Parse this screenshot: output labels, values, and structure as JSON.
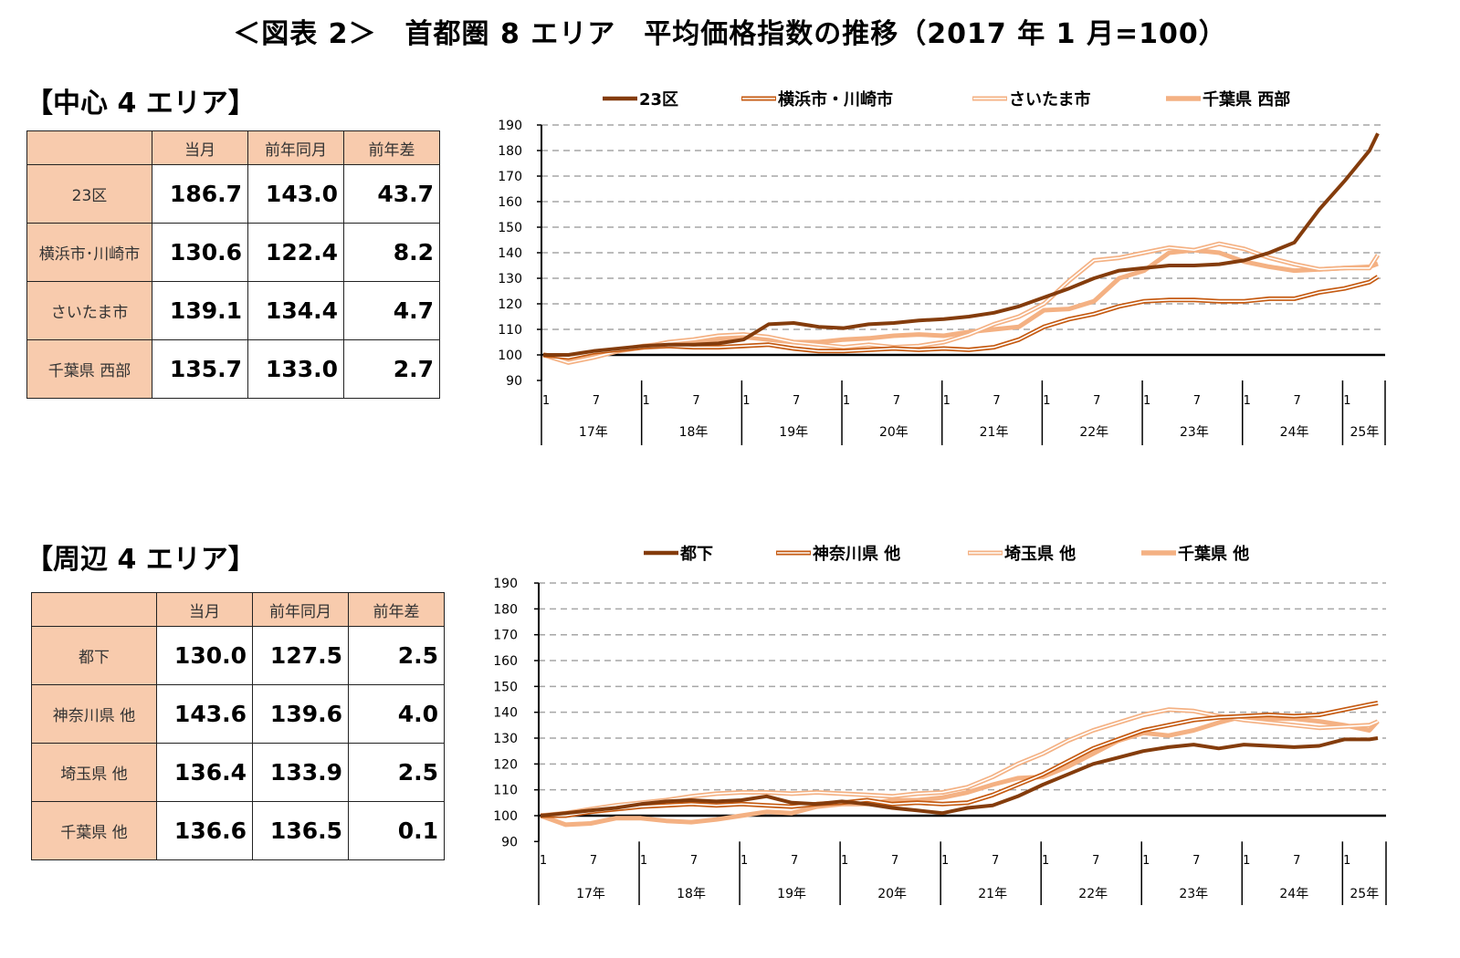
{
  "title": "＜図表 2＞　首都圏 8 エリア　平均価格指数の推移（2017 年 1 月=100）",
  "tables": [
    {
      "heading": "【中心 4 エリア】",
      "columns": [
        "",
        "当月",
        "前年同月",
        "前年差"
      ],
      "rows": [
        {
          "area": "23区",
          "current": "186.7",
          "prev_year": "143.0",
          "diff": "43.7"
        },
        {
          "area": "横浜市･川崎市",
          "current": "130.6",
          "prev_year": "122.4",
          "diff": "8.2"
        },
        {
          "area": "さいたま市",
          "current": "139.1",
          "prev_year": "134.4",
          "diff": "4.7"
        },
        {
          "area": "千葉県 西部",
          "current": "135.7",
          "prev_year": "133.0",
          "diff": "2.7"
        }
      ]
    },
    {
      "heading": "【周辺 4 エリア】",
      "columns": [
        "",
        "当月",
        "前年同月",
        "前年差"
      ],
      "rows": [
        {
          "area": "都下",
          "current": "130.0",
          "prev_year": "127.5",
          "diff": "2.5"
        },
        {
          "area": "神奈川県 他",
          "current": "143.6",
          "prev_year": "139.6",
          "diff": "4.0"
        },
        {
          "area": "埼玉県 他",
          "current": "136.4",
          "prev_year": "133.9",
          "diff": "2.5"
        },
        {
          "area": "千葉県 他",
          "current": "136.6",
          "prev_year": "136.5",
          "diff": "0.1"
        }
      ]
    }
  ],
  "chart_data": [
    {
      "type": "line",
      "title": "",
      "ylim": [
        90,
        190
      ],
      "y_ticks": [
        90,
        100,
        110,
        120,
        130,
        140,
        150,
        160,
        170,
        180,
        190
      ],
      "grid": "horizontal dashed",
      "legend_position": "top",
      "x_tick_labels": [
        "1",
        "7"
      ],
      "year_labels": [
        "17年",
        "18年",
        "19年",
        "20年",
        "21年",
        "22年",
        "23年",
        "24年",
        "25年"
      ],
      "x": [
        "2017-01",
        "2017-04",
        "2017-07",
        "2017-10",
        "2018-01",
        "2018-04",
        "2018-07",
        "2018-10",
        "2019-01",
        "2019-04",
        "2019-07",
        "2019-10",
        "2020-01",
        "2020-04",
        "2020-07",
        "2020-10",
        "2021-01",
        "2021-04",
        "2021-07",
        "2021-10",
        "2022-01",
        "2022-04",
        "2022-07",
        "2022-10",
        "2023-01",
        "2023-04",
        "2023-07",
        "2023-10",
        "2024-01",
        "2024-04",
        "2024-07",
        "2024-10",
        "2025-01",
        "2025-04",
        "2025-05"
      ],
      "series": [
        {
          "name": "23区",
          "color": "#843C0C",
          "style": "solid-thick",
          "values": [
            100,
            100,
            101.5,
            102.5,
            103.5,
            104,
            104,
            104.5,
            106,
            112,
            112.5,
            111,
            110.5,
            112,
            112.5,
            113.5,
            114,
            115,
            116.5,
            119,
            122.5,
            126,
            130,
            133,
            134,
            135,
            135,
            135.5,
            137,
            140,
            144,
            157,
            168,
            180,
            186.7
          ]
        },
        {
          "name": "横浜市・川崎市",
          "color": "#C55A11",
          "style": "double",
          "values": [
            100,
            99,
            101,
            102,
            103,
            103.5,
            103,
            103,
            103.5,
            104,
            102.5,
            101.5,
            101.5,
            102,
            102.5,
            102,
            102.5,
            102,
            103,
            106,
            111,
            114,
            116,
            119,
            121,
            121.5,
            121.5,
            121,
            121,
            122,
            122,
            124.5,
            126,
            128.5,
            130.6
          ]
        },
        {
          "name": "さいたま市",
          "color": "#F4B183",
          "style": "double",
          "values": [
            100,
            97,
            99,
            101.5,
            103,
            105,
            106,
            107.5,
            108,
            107,
            105,
            104,
            103,
            104,
            103,
            103.5,
            105,
            108,
            112,
            115,
            120,
            129,
            137,
            138,
            140,
            142,
            141,
            143.5,
            141.5,
            138,
            135.5,
            133.5,
            134,
            134,
            139.1
          ]
        },
        {
          "name": "千葉県 西部",
          "color": "#F4B183",
          "style": "solid-thick",
          "values": [
            100,
            98.5,
            100,
            102,
            103.5,
            104.5,
            105,
            106,
            107,
            106,
            105,
            105,
            106,
            106.5,
            107.5,
            108,
            107.5,
            109,
            110,
            111,
            117.5,
            118,
            121,
            130,
            133,
            140,
            141,
            140,
            136.5,
            134.5,
            133,
            133.5,
            134,
            134.5,
            135.7
          ]
        }
      ]
    },
    {
      "type": "line",
      "title": "",
      "ylim": [
        90,
        190
      ],
      "y_ticks": [
        90,
        100,
        110,
        120,
        130,
        140,
        150,
        160,
        170,
        180,
        190
      ],
      "grid": "horizontal dashed",
      "legend_position": "top",
      "x_tick_labels": [
        "1",
        "7"
      ],
      "year_labels": [
        "17年",
        "18年",
        "19年",
        "20年",
        "21年",
        "22年",
        "23年",
        "24年",
        "25年"
      ],
      "x": [
        "2017-01",
        "2017-04",
        "2017-07",
        "2017-10",
        "2018-01",
        "2018-04",
        "2018-07",
        "2018-10",
        "2019-01",
        "2019-04",
        "2019-07",
        "2019-10",
        "2020-01",
        "2020-04",
        "2020-07",
        "2020-10",
        "2021-01",
        "2021-04",
        "2021-07",
        "2021-10",
        "2022-01",
        "2022-04",
        "2022-07",
        "2022-10",
        "2023-01",
        "2023-04",
        "2023-07",
        "2023-10",
        "2024-01",
        "2024-04",
        "2024-07",
        "2024-10",
        "2025-01",
        "2025-04",
        "2025-05"
      ],
      "series": [
        {
          "name": "都下",
          "color": "#843C0C",
          "style": "solid-thick",
          "values": [
            100,
            101,
            102,
            103,
            104.5,
            105.5,
            106,
            105.5,
            106,
            107.5,
            105,
            104.5,
            105.5,
            104.5,
            103,
            102,
            101,
            103,
            104,
            107.5,
            112,
            116,
            120,
            122.5,
            125,
            126.5,
            127.5,
            126,
            127.5,
            127,
            126.5,
            127,
            129.5,
            129.5,
            130.0
          ]
        },
        {
          "name": "神奈川県 他",
          "color": "#C55A11",
          "style": "double",
          "values": [
            100,
            100,
            101.5,
            102.5,
            103.5,
            104,
            104.5,
            104,
            104.5,
            104,
            103.5,
            104.5,
            105,
            106,
            104.5,
            105,
            104.5,
            105,
            108,
            112,
            116,
            121,
            126,
            129.5,
            133,
            135,
            137,
            138,
            138.5,
            139,
            138.5,
            139,
            141,
            143,
            143.6
          ]
        },
        {
          "name": "埼玉県 他",
          "color": "#F4B183",
          "style": "double",
          "values": [
            100,
            101,
            102.5,
            104,
            105,
            106,
            107.5,
            108.5,
            109,
            109,
            108.5,
            109,
            108.5,
            108,
            107.5,
            108.5,
            109,
            111,
            115,
            120,
            124,
            129,
            133,
            136,
            139,
            141,
            140.5,
            138.5,
            137,
            136,
            135,
            134,
            134.5,
            135,
            136.4
          ]
        },
        {
          "name": "千葉県 他",
          "color": "#F4B183",
          "style": "solid-thick",
          "values": [
            100,
            96.5,
            97,
            99,
            99,
            98,
            97.5,
            98.5,
            100,
            101.5,
            101,
            103.5,
            104.5,
            104.5,
            106,
            106,
            107,
            109,
            112,
            114.5,
            115,
            119,
            124,
            129,
            132,
            131,
            133,
            136,
            138.5,
            137.5,
            137.5,
            136.5,
            135,
            133,
            136.6
          ]
        }
      ]
    }
  ]
}
